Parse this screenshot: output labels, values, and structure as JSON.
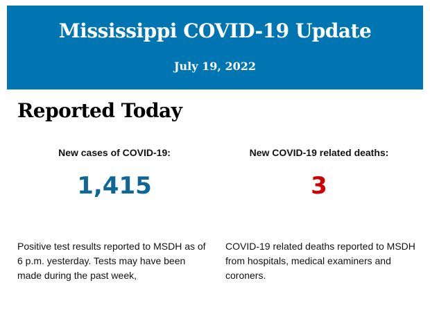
{
  "header": {
    "title": "Mississippi COVID-19 Update",
    "date": "July 19, 2022",
    "background_color": "#0075b2"
  },
  "section_title": "Reported Today",
  "cases": {
    "label": "New cases of COVID-19:",
    "value": "1,415",
    "color": "#0f6796",
    "description": "Positive test results reported to MSDH as of 6 p.m. yesterday. Tests may have been made during the past week,"
  },
  "deaths": {
    "label": "New COVID-19 related deaths:",
    "value": "3",
    "color": "#cc0000",
    "description": "COVID-19 related deaths reported to MSDH from hospitals, medical examiners and coroners."
  }
}
